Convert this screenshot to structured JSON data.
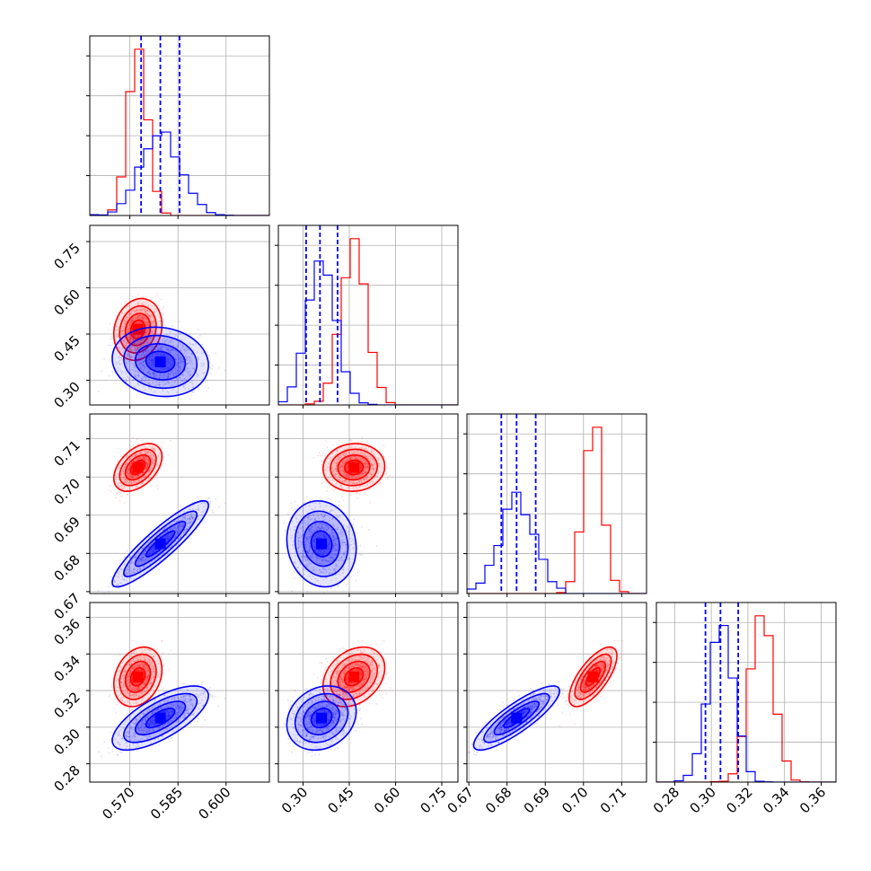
{
  "chart_data": {
    "type": "corner",
    "title": "",
    "parameters": [
      "",
      "",
      "",
      ""
    ],
    "colors": {
      "red": "#ff0000",
      "blue": "#0000ff",
      "grid": "#b0b0b0"
    },
    "grid": true,
    "axes": [
      {
        "range": [
          0.5575,
          0.6135
        ],
        "ticks": [
          0.57,
          0.585,
          0.6
        ],
        "tick_labels": [
          "0.570",
          "0.585",
          "0.600"
        ]
      },
      {
        "range": [
          0.22,
          0.8025
        ],
        "ticks": [
          0.3,
          0.45,
          0.6,
          0.75
        ],
        "tick_labels": [
          "0.30",
          "0.45",
          "0.60",
          "0.75"
        ]
      },
      {
        "range": [
          0.6695,
          0.7165
        ],
        "ticks": [
          0.67,
          0.68,
          0.69,
          0.7,
          0.71
        ],
        "tick_labels": [
          "0.67",
          "0.68",
          "0.69",
          "0.70",
          "0.71"
        ]
      },
      {
        "range": [
          0.27,
          0.3681
        ],
        "ticks": [
          0.28,
          0.3,
          0.32,
          0.34,
          0.36
        ],
        "tick_labels": [
          "0.28",
          "0.30",
          "0.32",
          "0.34",
          "0.36"
        ]
      }
    ],
    "series": [
      {
        "color": "red",
        "mean": [
          0.5725,
          0.465,
          0.7025,
          0.3275
        ],
        "sd": [
          0.003,
          0.04,
          0.0025,
          0.0065
        ],
        "corr": [
          [
            1.0,
            0.15,
            0.45,
            0.25
          ],
          [
            0.15,
            1.0,
            0.05,
            0.3
          ],
          [
            0.45,
            0.05,
            1.0,
            0.7
          ],
          [
            0.25,
            0.3,
            0.7,
            1.0
          ]
        ]
      },
      {
        "color": "blue",
        "mean": [
          0.5795,
          0.36,
          0.6825,
          0.305
        ],
        "sd": [
          0.006,
          0.045,
          0.0045,
          0.007
        ],
        "corr": [
          [
            1.0,
            -0.1,
            0.9,
            0.7
          ],
          [
            -0.1,
            1.0,
            -0.1,
            0.2
          ],
          [
            0.9,
            -0.1,
            1.0,
            0.85
          ],
          [
            0.7,
            0.2,
            0.85,
            1.0
          ]
        ],
        "quantile_lines": [
          [
            0.5735,
            0.5795,
            0.5855
          ],
          [
            0.31,
            0.355,
            0.412
          ],
          [
            0.6785,
            0.6825,
            0.6875
          ],
          [
            0.2968,
            0.305,
            0.3147
          ]
        ]
      }
    ]
  }
}
